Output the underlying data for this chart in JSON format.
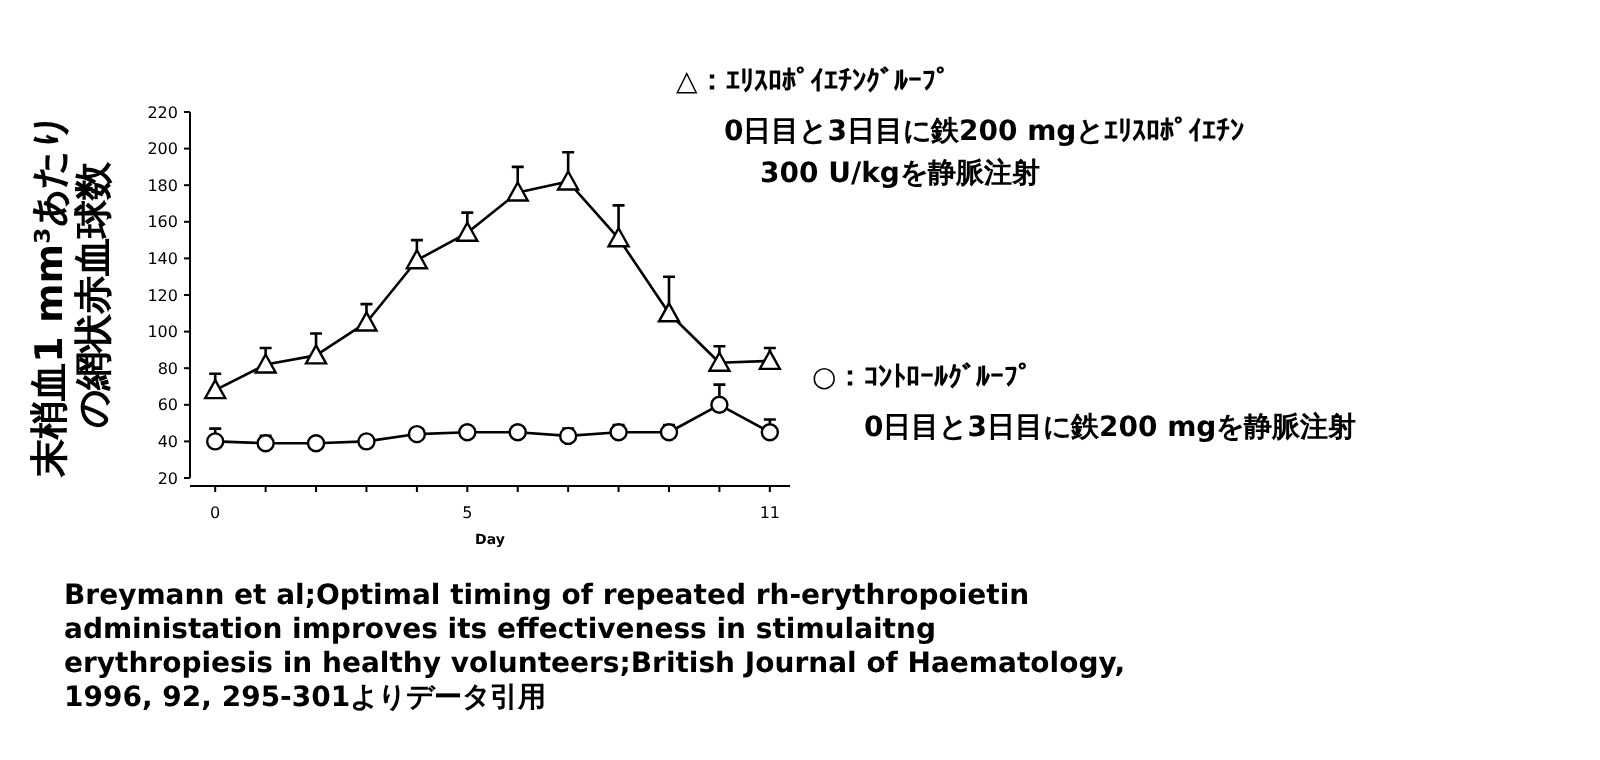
{
  "chart_data": {
    "type": "line",
    "xlabel": "Day",
    "ylabel": "末梢血1 mm³あたりの網状赤血球数",
    "x": [
      0,
      1,
      2,
      3,
      4,
      5,
      6,
      7,
      8,
      9,
      10,
      11
    ],
    "xlim": [
      -0.5,
      11.4
    ],
    "xticks": [
      0,
      {
        "value": 1,
        "label": null
      },
      {
        "value": 2,
        "label": null
      },
      {
        "value": 3,
        "label": null
      },
      {
        "value": 4,
        "label": null
      },
      5,
      {
        "value": 6,
        "label": null
      },
      {
        "value": 7,
        "label": null
      },
      {
        "value": 8,
        "label": null
      },
      {
        "value": 9,
        "label": null
      },
      {
        "value": 10,
        "label": null
      },
      11
    ],
    "ylim": [
      20,
      220
    ],
    "yticks": [
      20,
      40,
      60,
      80,
      100,
      120,
      140,
      160,
      180,
      200,
      220
    ],
    "series": [
      {
        "color": "#000000",
        "marker": "triangle",
        "values": [
          68,
          82,
          87,
          105,
          139,
          154,
          176,
          182,
          151,
          110,
          83,
          84
        ],
        "errors": [
          [
            68,
            77
          ],
          [
            82,
            91
          ],
          [
            87,
            99
          ],
          [
            105,
            115
          ],
          [
            139,
            150
          ],
          [
            154,
            165
          ],
          [
            176,
            190
          ],
          [
            182,
            198
          ],
          [
            151,
            169
          ],
          [
            110,
            130
          ],
          [
            83,
            92
          ],
          [
            84,
            91
          ]
        ]
      },
      {
        "color": "#000000",
        "marker": "circle",
        "values": [
          40,
          39,
          39,
          40,
          44,
          45,
          45,
          43,
          45,
          45,
          60,
          45
        ],
        "errors": [
          [
            40,
            47
          ],
          [
            39,
            43
          ],
          [
            39,
            42
          ],
          [
            40,
            43
          ],
          [
            44,
            47
          ],
          [
            45,
            48
          ],
          [
            45,
            48
          ],
          [
            43,
            47
          ],
          [
            45,
            49
          ],
          [
            45,
            49
          ],
          [
            60,
            71
          ],
          [
            45,
            52
          ]
        ]
      }
    ],
    "grid": false,
    "annotations": [
      "△：ｴﾘｽﾛﾎﾟｲｴﾁﾝｸﾞﾙｰﾌﾟ",
      "0日目と3日目に鉄200 mgとｴﾘｽﾛﾎﾟｲｴﾁﾝ\n300 U/kgを静脈注射",
      "○：ｺﾝﾄﾛｰﾙｸﾞﾙｰﾌﾟ",
      "0日目と3日目に鉄200 mgを静脈注射",
      "Breymann et al;Optimal timing of repeated rh-erythropoietin\nadministation improves its effectiveness in stimulaitng\nerythropiesis in healthy volunteers;British Journal of Haematology,\n1996, 92, 295-301よりデータ引用"
    ]
  }
}
